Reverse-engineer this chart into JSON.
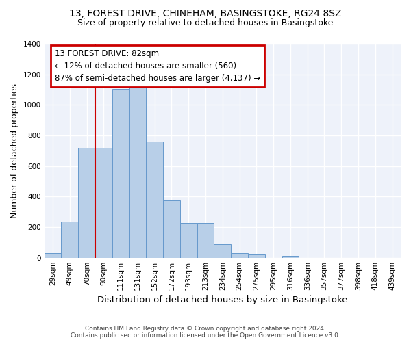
{
  "title": "13, FOREST DRIVE, CHINEHAM, BASINGSTOKE, RG24 8SZ",
  "subtitle": "Size of property relative to detached houses in Basingstoke",
  "xlabel": "Distribution of detached houses by size in Basingstoke",
  "ylabel": "Number of detached properties",
  "bar_color": "#b8cfe8",
  "bar_edge_color": "#6699cc",
  "background_color": "#eef2fa",
  "grid_color": "#ffffff",
  "categories": [
    "29sqm",
    "49sqm",
    "70sqm",
    "90sqm",
    "111sqm",
    "131sqm",
    "152sqm",
    "172sqm",
    "193sqm",
    "213sqm",
    "234sqm",
    "254sqm",
    "275sqm",
    "295sqm",
    "316sqm",
    "336sqm",
    "357sqm",
    "377sqm",
    "398sqm",
    "418sqm",
    "439sqm"
  ],
  "values": [
    32,
    238,
    720,
    720,
    1105,
    1120,
    760,
    375,
    228,
    228,
    90,
    30,
    20,
    0,
    12,
    0,
    0,
    0,
    0,
    0,
    0
  ],
  "property_line_bin": 3.0,
  "annotation_line1": "13 FOREST DRIVE: 82sqm",
  "annotation_line2": "← 12% of detached houses are smaller (560)",
  "annotation_line3": "87% of semi-detached houses are larger (4,137) →",
  "annotation_box_color": "#cc0000",
  "ylim": [
    0,
    1400
  ],
  "footer_line1": "Contains HM Land Registry data © Crown copyright and database right 2024.",
  "footer_line2": "Contains public sector information licensed under the Open Government Licence v3.0."
}
